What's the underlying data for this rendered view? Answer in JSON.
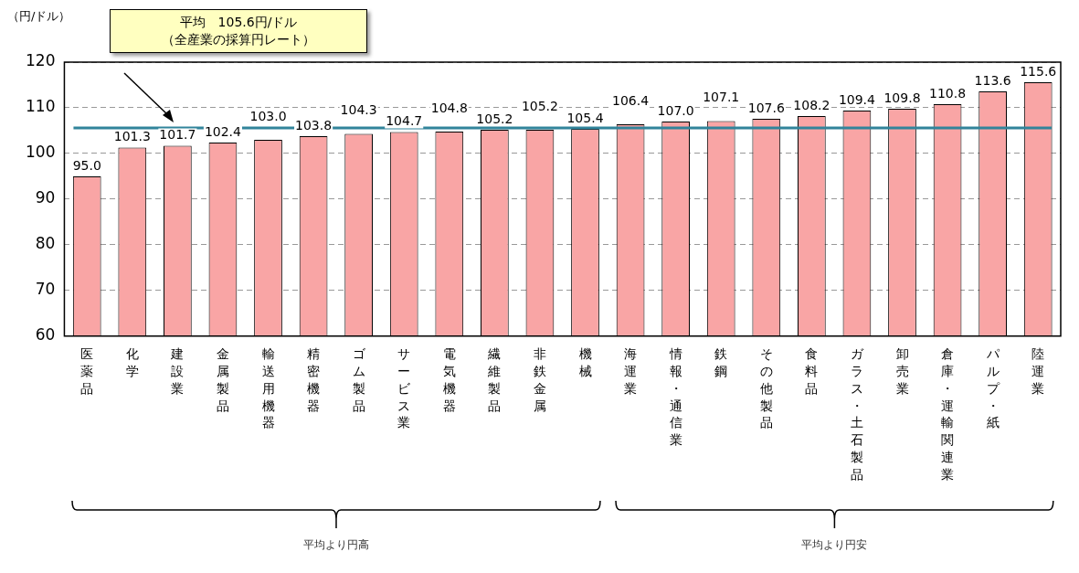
{
  "chart_data": {
    "type": "bar",
    "ylabel": "（円/ドル）",
    "categories": [
      "医薬品",
      "化学",
      "建設業",
      "金属製品",
      "輸送用機器",
      "精密機器",
      "ゴム製品",
      "サービス業",
      "電気機器",
      "繊維製品",
      "非鉄金属",
      "機械",
      "海運業",
      "情報・通信業",
      "鉄鋼",
      "その他製品",
      "食料品",
      "ガラス・土石製品",
      "卸売業",
      "倉庫・運輸関連業",
      "パルプ・紙",
      "陸運業"
    ],
    "values": [
      95.0,
      101.3,
      101.7,
      102.4,
      103.0,
      103.8,
      104.3,
      104.7,
      104.8,
      105.2,
      105.2,
      105.4,
      106.4,
      107.0,
      107.1,
      107.6,
      108.2,
      109.4,
      109.8,
      110.8,
      113.6,
      115.6
    ],
    "color": "#f9a5a5",
    "value_labels": [
      "95.0",
      "101.3",
      "101.7",
      "102.4",
      "103.0",
      "103.8",
      "104.3",
      "104.7",
      "104.8",
      "105.2",
      "105.2",
      "105.4",
      "106.4",
      "107.0",
      "107.1",
      "107.6",
      "108.2",
      "109.4",
      "109.8",
      "110.8",
      "113.6",
      "115.6"
    ],
    "ylim": [
      60,
      120
    ],
    "yticks": [
      60,
      70,
      80,
      90,
      100,
      110,
      120
    ],
    "grid": "y",
    "legend": false,
    "ref_lines": [
      {
        "axis": "y",
        "value": 105.6,
        "color": "#31849b"
      }
    ],
    "annotations": [
      "平均　105.6円/ドル",
      "（全産業の採算円レート）",
      "平均より円高",
      "平均より円安"
    ]
  }
}
